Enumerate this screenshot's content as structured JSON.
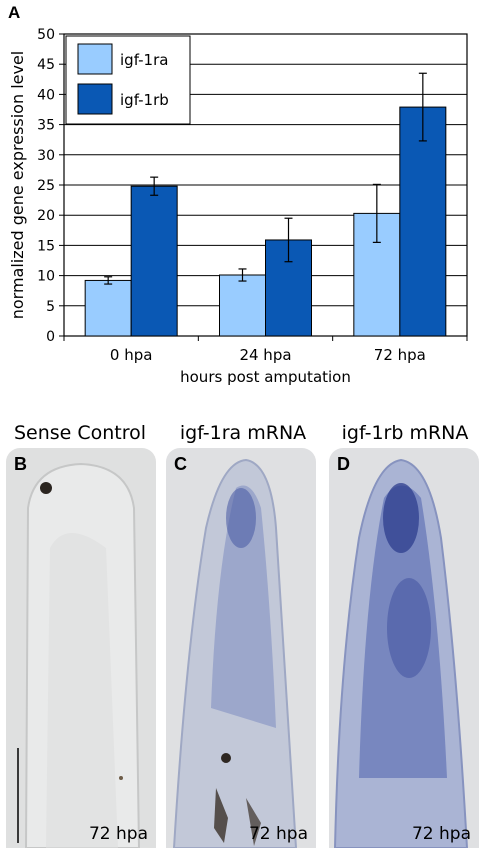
{
  "panel_a": {
    "letter": "A"
  },
  "chart_data": {
    "type": "bar",
    "categories": [
      "0 hpa",
      "24 hpa",
      "72 hpa"
    ],
    "series": [
      {
        "name": "igf-1ra",
        "values": [
          9.2,
          10.1,
          20.3
        ],
        "errors": [
          0.6,
          1.0,
          4.8
        ],
        "color": "#99ccff"
      },
      {
        "name": "igf-1rb",
        "values": [
          24.8,
          15.9,
          37.9
        ],
        "errors": [
          1.5,
          3.6,
          5.6
        ],
        "color": "#0a58b4"
      }
    ],
    "xlabel": "hours post amputation",
    "ylabel": "normalized gene expression level",
    "ylim": [
      0,
      50
    ],
    "yticks": [
      0,
      5,
      10,
      15,
      20,
      25,
      30,
      35,
      40,
      45,
      50
    ],
    "grid": true,
    "legend": "top-left"
  },
  "panels": [
    {
      "letter": "B",
      "title": "Sense Control",
      "label": "72 hpa"
    },
    {
      "letter": "C",
      "title": "igf-1ra mRNA",
      "label": "72 hpa"
    },
    {
      "letter": "D",
      "title": "igf-1rb mRNA",
      "label": "72 hpa"
    }
  ]
}
